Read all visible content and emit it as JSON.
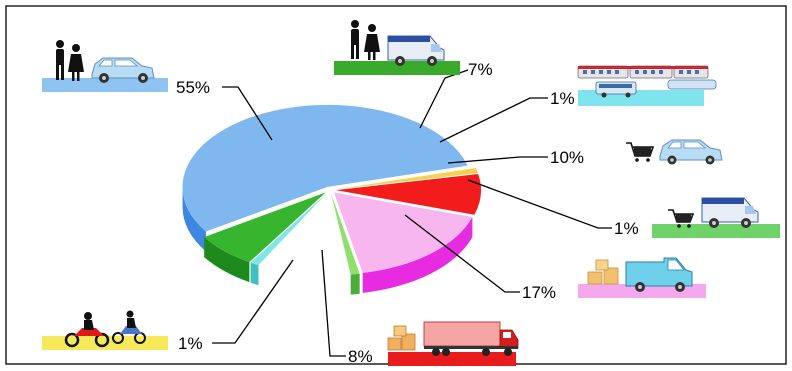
{
  "chart_data": {
    "type": "pie",
    "style": "3d-exploded",
    "legend": "pictogram labels around the pie",
    "slices": [
      {
        "label": "55%",
        "value": 55,
        "color": "#7fb8ef",
        "side_color": "#3f86e0",
        "icon": "pedestrians-and-car-icon"
      },
      {
        "label": "7%",
        "value": 7,
        "color": "#38b52e",
        "side_color": "#1f8a1c",
        "icon": "pedestrians-and-van-icon"
      },
      {
        "label": "1%",
        "value": 1,
        "color": "#7fe6e6",
        "side_color": "#3fc0c0",
        "icon": "trains-and-bus-icon"
      },
      {
        "label": "10%",
        "value": 10,
        "color": "#ffffff",
        "side_color": "#ffffff",
        "icon": "cart-and-car-icon"
      },
      {
        "label": "1%",
        "value": 1,
        "color": "#8ee06a",
        "side_color": "#4cae3a",
        "icon": "cart-and-van-icon"
      },
      {
        "label": "17%",
        "value": 17,
        "color": "#f7b7ee",
        "side_color": "#e62be0",
        "icon": "boxes-and-pickup-truck-icon"
      },
      {
        "label": "8%",
        "value": 8,
        "color": "#f21c1c",
        "side_color": "#c80f0f",
        "icon": "truck-with-cargo-icon"
      },
      {
        "label": "1%",
        "value": 1,
        "color": "#f5d24a",
        "side_color": "#e0a820",
        "icon": "motorcycles-icon"
      }
    ]
  }
}
